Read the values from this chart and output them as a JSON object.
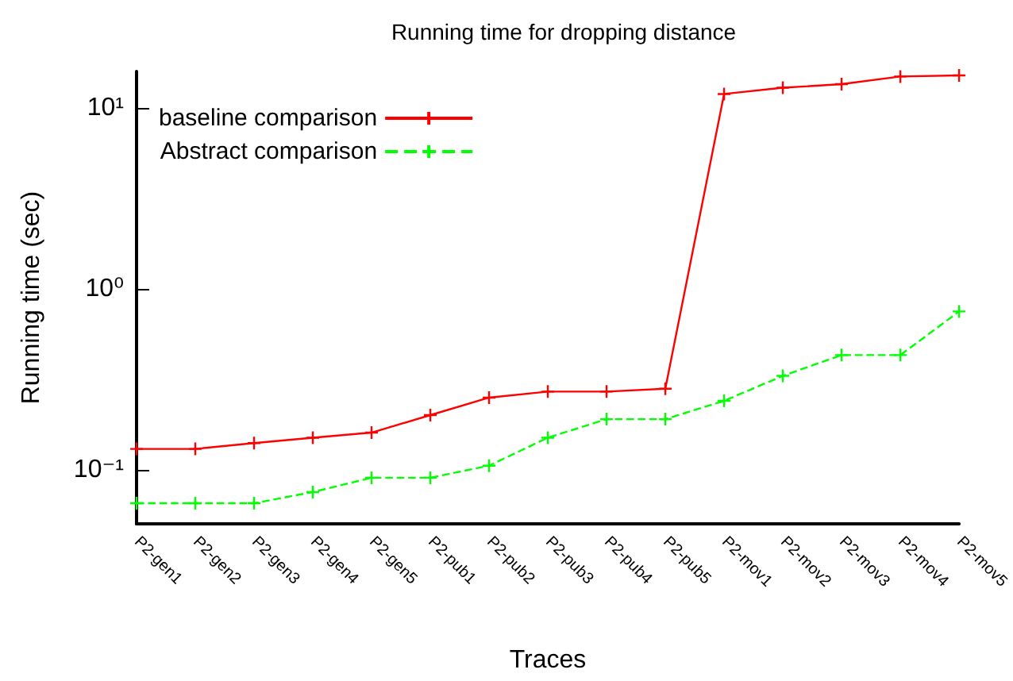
{
  "chart_data": {
    "type": "line",
    "title": "Running time for dropping distance",
    "xlabel": "Traces",
    "ylabel": "Running time (sec)",
    "categories": [
      "P2-gen1",
      "P2-gen2",
      "P2-gen3",
      "P2-gen4",
      "P2-gen5",
      "P2-pub1",
      "P2-pub2",
      "P2-pub3",
      "P2-pub4",
      "P2-pub5",
      "P2-mov1",
      "P2-mov2",
      "P2-mov3",
      "P2-mov4",
      "P2-mov5"
    ],
    "series": [
      {
        "name": "baseline comparison",
        "color": "#ff0000",
        "marker": "cross",
        "line_style": "solid",
        "values": [
          0.13,
          0.13,
          0.14,
          0.15,
          0.16,
          0.2,
          0.25,
          0.27,
          0.27,
          0.28,
          12,
          13,
          13.6,
          15,
          15.2
        ]
      },
      {
        "name": "Abstract comparison",
        "color": "#00ff00",
        "marker": "cross",
        "line_style": "dashed",
        "values": [
          0.065,
          0.065,
          0.065,
          0.075,
          0.09,
          0.09,
          0.105,
          0.15,
          0.19,
          0.19,
          0.24,
          0.33,
          0.43,
          0.43,
          0.75
        ]
      }
    ],
    "log": "y",
    "ylim": [
      0.05,
      16
    ],
    "yticks": [
      {
        "value": 0.1,
        "label": "10⁻¹"
      },
      {
        "value": 1,
        "label": "10⁰"
      },
      {
        "value": 10,
        "label": "10¹"
      }
    ],
    "grid": false,
    "legend": "top left"
  }
}
